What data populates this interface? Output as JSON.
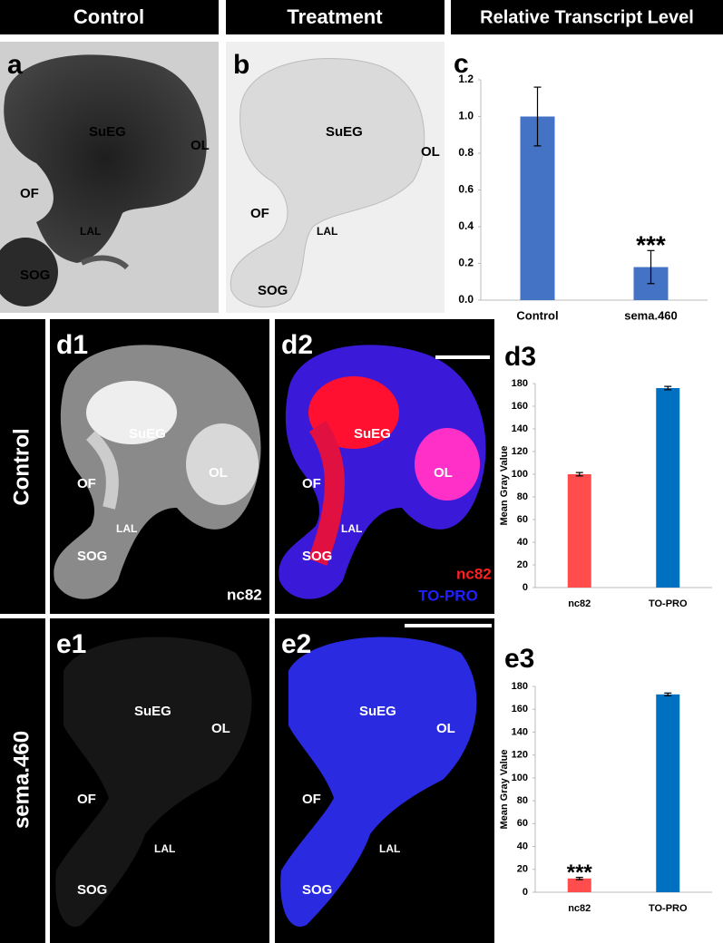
{
  "headers": [
    "Control",
    "Treatment",
    "Relative Transcript Level"
  ],
  "row_labels": [
    "Control",
    "sema.460"
  ],
  "panels": [
    {
      "letter": "a",
      "labels": [
        "SuEG",
        "OL",
        "OF",
        "LAL",
        "SOG"
      ]
    },
    {
      "letter": "b",
      "labels": [
        "SuEG",
        "OL",
        "OF",
        "LAL",
        "SOG"
      ]
    },
    {
      "letter": "d1",
      "labels": [
        "SuEG",
        "OL",
        "OF",
        "LAL",
        "SOG",
        "nc82"
      ]
    },
    {
      "letter": "d2",
      "labels": [
        "SuEG",
        "OL",
        "OF",
        "LAL",
        "SOG",
        "nc82",
        "TO-PRO"
      ]
    },
    {
      "letter": "e1",
      "labels": [
        "SuEG",
        "OL",
        "OF",
        "LAL",
        "SOG"
      ]
    },
    {
      "letter": "e2",
      "labels": [
        "SuEG",
        "OL",
        "OF",
        "LAL",
        "SOG"
      ]
    }
  ],
  "chart_data": [
    {
      "type": "bar",
      "panel": "c",
      "categories": [
        "Control",
        "sema.460"
      ],
      "values": [
        1.0,
        0.18
      ],
      "errors": [
        0.16,
        0.09
      ],
      "value_annotations": [
        null,
        "***"
      ],
      "color": "#4472c4",
      "ylim": [
        0,
        1.2
      ],
      "yticks": [
        {
          "value": 0,
          "label": "0.0"
        },
        0.2,
        0.4,
        0.6,
        0.8,
        {
          "value": 1,
          "label": "1.0"
        },
        1.2
      ]
    },
    {
      "type": "bar",
      "panel": "d3",
      "y_label": "Mean Gray Value",
      "categories": [
        "nc82",
        "TO-PRO"
      ],
      "values": [
        100,
        176
      ],
      "errors": [
        1.5,
        1.5
      ],
      "colors": [
        "#ff4d4d",
        "#0070c0"
      ],
      "ylim": [
        0,
        180
      ],
      "yticks": [
        0,
        20,
        40,
        60,
        80,
        100,
        120,
        140,
        160,
        180
      ]
    },
    {
      "type": "bar",
      "panel": "e3",
      "y_label": "Mean Gray Value",
      "categories": [
        "nc82",
        "TO-PRO"
      ],
      "values": [
        12,
        173
      ],
      "errors": [
        1,
        1.2
      ],
      "value_annotations": [
        "***",
        null
      ],
      "colors": [
        "#ff4d4d",
        "#0070c0"
      ],
      "ylim": [
        0,
        180
      ],
      "yticks": [
        0,
        20,
        40,
        60,
        80,
        100,
        120,
        140,
        160,
        180
      ]
    }
  ]
}
